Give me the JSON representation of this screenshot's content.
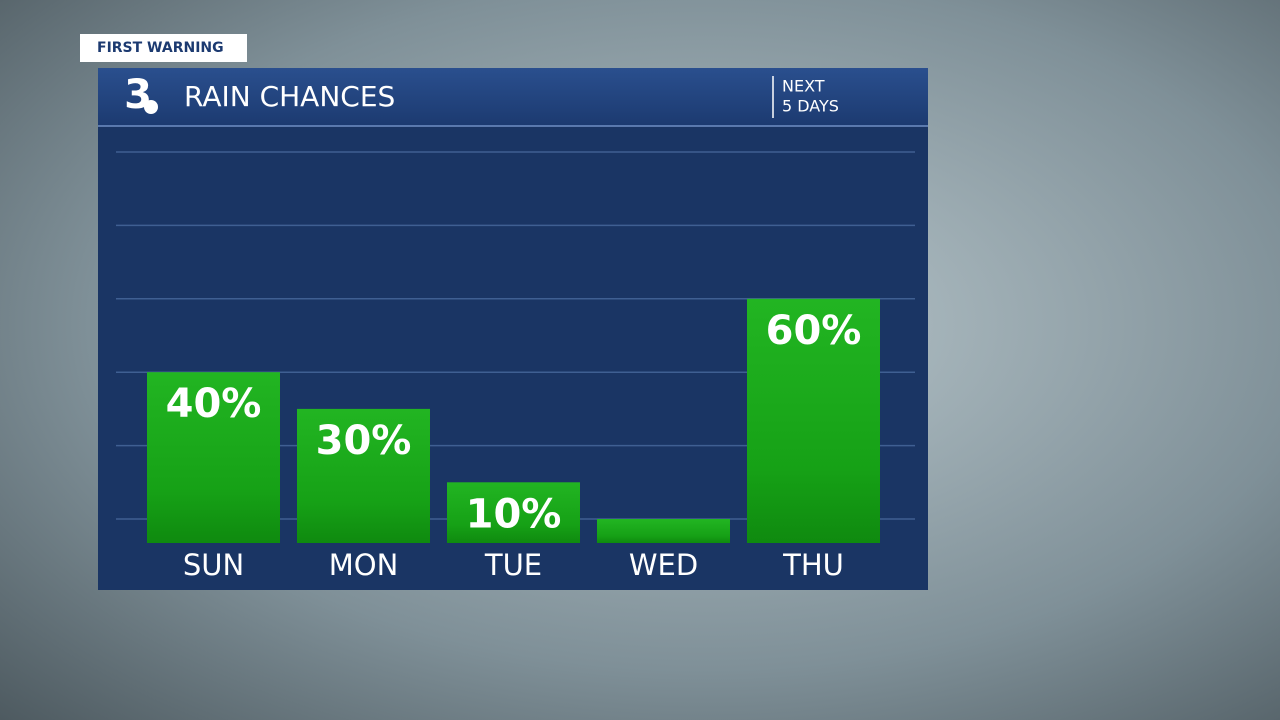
{
  "badge": "FIRST WARNING",
  "logo_text": "3",
  "header": {
    "title": "RAIN CHANCES",
    "period_line1": "NEXT",
    "period_line2": "5 DAYS"
  },
  "chart_data": {
    "type": "bar",
    "categories": [
      "SUN",
      "MON",
      "TUE",
      "WED",
      "THU"
    ],
    "values": [
      40,
      30,
      10,
      0,
      60
    ],
    "value_labels": [
      "40%",
      "30%",
      "10%",
      null,
      "60%"
    ],
    "color": "#1aa81a",
    "ylim": [
      0,
      100
    ],
    "yticks": [
      0,
      20,
      40,
      60,
      80,
      100
    ],
    "grid": true
  }
}
